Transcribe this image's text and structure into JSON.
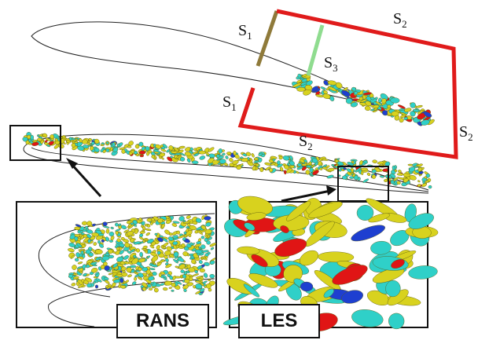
{
  "colors": {
    "domain_box": "#e01b1b",
    "plane_s1": "#8f7a3a",
    "plane_s3": "#8fdc8f",
    "frame": "#111111",
    "iso_yellow": "#d8d21e",
    "iso_cyan": "#2fd0c8",
    "iso_red": "#e01515",
    "iso_blue": "#1e3fd0"
  },
  "top_view": {
    "labels": {
      "s1_upper": {
        "base": "S",
        "sub": "1"
      },
      "s1_lower": {
        "base": "S",
        "sub": "1"
      },
      "s2_top": {
        "base": "S",
        "sub": "2"
      },
      "s2_bottom": {
        "base": "S",
        "sub": "2"
      },
      "s2_right": {
        "base": "S",
        "sub": "2"
      },
      "s3": {
        "base": "S",
        "sub": "3"
      }
    }
  },
  "insets": {
    "left_label": "RANS",
    "right_label": "LES"
  }
}
